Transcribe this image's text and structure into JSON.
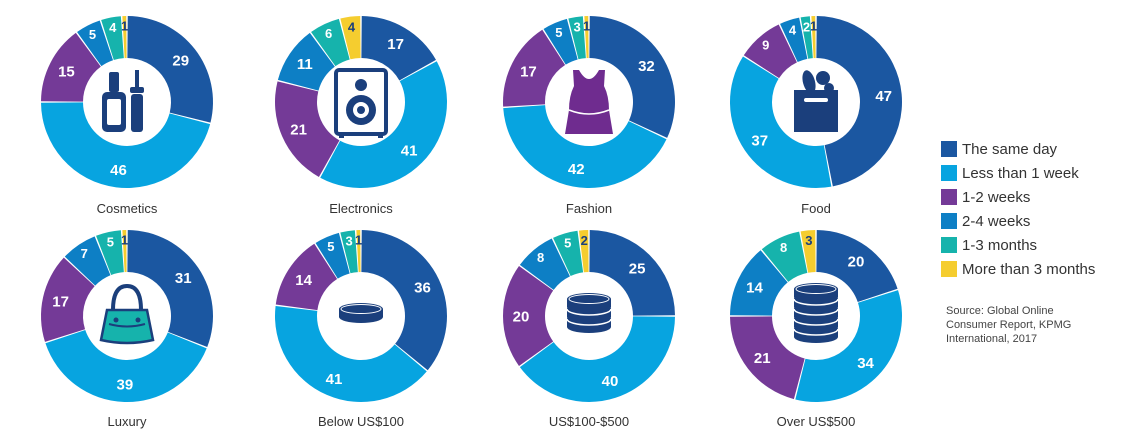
{
  "colors": {
    "same_day": "#1b57a1",
    "less_than_1_week": "#07a4e0",
    "one_two_weeks": "#743a97",
    "two_four_weeks": "#0d7fc5",
    "one_three_months": "#16b3ac",
    "more_than_3_months": "#f5cd2f",
    "icon_blue": "#1b3f7c",
    "icon_purple": "#6f2c8f",
    "icon_teal": "#16b3ac"
  },
  "legend": {
    "items": [
      {
        "label": "The same day",
        "color": "#1b57a1"
      },
      {
        "label": "Less than 1 week",
        "color": "#07a4e0"
      },
      {
        "label": "1-2 weeks",
        "color": "#743a97"
      },
      {
        "label": "2-4 weeks",
        "color": "#0d7fc5"
      },
      {
        "label": "1-3 months",
        "color": "#16b3ac"
      },
      {
        "label": "More than 3 months",
        "color": "#f5cd2f"
      }
    ]
  },
  "source": {
    "lines": [
      "Source: Global Online",
      "Consumer Report, KPMG",
      "International, 2017"
    ]
  },
  "chart_data": [
    {
      "type": "pie",
      "title": "Cosmetics",
      "icon": "nail-polish-icon",
      "categories": [
        "The same day",
        "Less than 1 week",
        "1-2 weeks",
        "2-4 weeks",
        "1-3 months",
        "More than 3 months"
      ],
      "values": [
        29,
        46,
        15,
        5,
        4,
        1
      ]
    },
    {
      "type": "pie",
      "title": "Electronics",
      "icon": "speaker-icon",
      "categories": [
        "The same day",
        "Less than 1 week",
        "1-2 weeks",
        "2-4 weeks",
        "1-3 months",
        "More than 3 months"
      ],
      "values": [
        17,
        41,
        21,
        11,
        6,
        4
      ]
    },
    {
      "type": "pie",
      "title": "Fashion",
      "icon": "tank-top-icon",
      "categories": [
        "The same day",
        "Less than 1 week",
        "1-2 weeks",
        "2-4 weeks",
        "1-3 months",
        "More than 3 months"
      ],
      "values": [
        32,
        42,
        17,
        5,
        3,
        1
      ]
    },
    {
      "type": "pie",
      "title": "Food",
      "icon": "grocery-bag-icon",
      "categories": [
        "The same day",
        "Less than 1 week",
        "1-2 weeks",
        "2-4 weeks",
        "1-3 months",
        "More than 3 months"
      ],
      "values": [
        47,
        37,
        9,
        4,
        2,
        1
      ]
    },
    {
      "type": "pie",
      "title": "Luxury",
      "icon": "handbag-icon",
      "categories": [
        "The same day",
        "Less than 1 week",
        "1-2 weeks",
        "2-4 weeks",
        "1-3 months",
        "More than 3 months"
      ],
      "values": [
        31,
        39,
        17,
        7,
        5,
        1
      ]
    },
    {
      "type": "pie",
      "title": "Below US$100",
      "icon": "coin-stack-1-icon",
      "categories": [
        "The same day",
        "Less than 1 week",
        "1-2 weeks",
        "2-4 weeks",
        "1-3 months",
        "More than 3 months"
      ],
      "values": [
        36,
        41,
        14,
        5,
        3,
        1
      ]
    },
    {
      "type": "pie",
      "title": "US$100-$500",
      "icon": "coin-stack-3-icon",
      "categories": [
        "The same day",
        "Less than 1 week",
        "1-2 weeks",
        "2-4 weeks",
        "1-3 months",
        "More than 3 months"
      ],
      "values": [
        25,
        40,
        20,
        8,
        5,
        2
      ]
    },
    {
      "type": "pie",
      "title": "Over US$500",
      "icon": "coin-stack-5-icon",
      "categories": [
        "The same day",
        "Less than 1 week",
        "1-2 weeks",
        "2-4 weeks",
        "1-3 months",
        "More than 3 months"
      ],
      "values": [
        20,
        34,
        21,
        14,
        8,
        3
      ]
    }
  ]
}
